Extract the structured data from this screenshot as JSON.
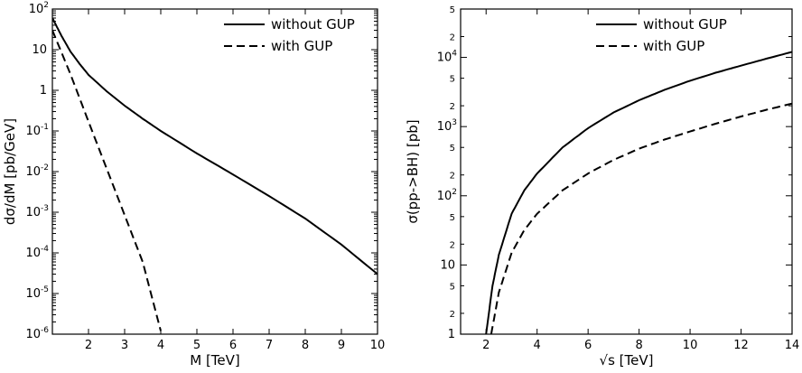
{
  "chart_data": [
    {
      "type": "line",
      "xlabel": "M [TeV]",
      "ylabel": "dσ/dM [pb/GeV]",
      "xlim": [
        1,
        10
      ],
      "ylim": [
        1e-06,
        100
      ],
      "xscale": "linear",
      "yscale": "log",
      "x_ticks": [
        "2",
        "3",
        "4",
        "5",
        "6",
        "7",
        "8",
        "9",
        "10"
      ],
      "y_ticks": [
        {
          "base": "10",
          "exp": "-6"
        },
        {
          "base": "10",
          "exp": "-5"
        },
        {
          "base": "10",
          "exp": "-4"
        },
        {
          "base": "10",
          "exp": "-3"
        },
        {
          "base": "10",
          "exp": "-2"
        },
        {
          "base": "10",
          "exp": "-1"
        },
        {
          "base": "1",
          "exp": ""
        },
        {
          "base": "10",
          "exp": ""
        },
        {
          "base": "10",
          "exp": "2"
        }
      ],
      "legend_position": "top-right",
      "grid": false,
      "series": [
        {
          "name": "without GUP",
          "dash": "solid",
          "x": [
            1.0,
            1.25,
            1.5,
            1.75,
            2.0,
            2.5,
            3.0,
            3.5,
            4.0,
            5.0,
            6.0,
            7.0,
            8.0,
            9.0,
            10.0
          ],
          "y": [
            60,
            22,
            9,
            4.5,
            2.4,
            0.95,
            0.42,
            0.2,
            0.1,
            0.028,
            0.0085,
            0.0025,
            0.0007,
            0.00016,
            3e-05
          ]
        },
        {
          "name": "with GUP",
          "dash": "dashed",
          "x": [
            1.0,
            1.5,
            2.0,
            2.5,
            3.0,
            3.5,
            4.0
          ],
          "y": [
            30,
            2.5,
            0.17,
            0.012,
            0.00085,
            6e-05,
            1.2e-06
          ]
        }
      ]
    },
    {
      "type": "line",
      "xlabel": "√s [TeV]",
      "ylabel": "σ(pp->BH) [pb]",
      "xlim": [
        1,
        14
      ],
      "ylim": [
        1,
        50000
      ],
      "xscale": "linear",
      "yscale": "log",
      "x_ticks": [
        "2",
        "4",
        "6",
        "8",
        "10",
        "12",
        "14"
      ],
      "y_ticks": [
        {
          "value": 1,
          "base": "1",
          "exp": ""
        },
        {
          "value": 2,
          "base": "2",
          "exp": ""
        },
        {
          "value": 5,
          "base": "5",
          "exp": ""
        },
        {
          "value": 10,
          "base": "10",
          "exp": ""
        },
        {
          "value": 20,
          "base": "2",
          "exp": ""
        },
        {
          "value": 50,
          "base": "5",
          "exp": ""
        },
        {
          "value": 100,
          "base": "10",
          "exp": "2"
        },
        {
          "value": 200,
          "base": "2",
          "exp": ""
        },
        {
          "value": 500,
          "base": "5",
          "exp": ""
        },
        {
          "value": 1000,
          "base": "10",
          "exp": "3"
        },
        {
          "value": 2000,
          "base": "2",
          "exp": ""
        },
        {
          "value": 5000,
          "base": "5",
          "exp": ""
        },
        {
          "value": 10000,
          "base": "10",
          "exp": "4"
        },
        {
          "value": 20000,
          "base": "2",
          "exp": ""
        },
        {
          "value": 50000,
          "base": "5",
          "exp": ""
        }
      ],
      "legend_position": "top-right",
      "grid": false,
      "series": [
        {
          "name": "without GUP",
          "dash": "solid",
          "x": [
            2.0,
            2.25,
            2.5,
            3.0,
            3.5,
            4.0,
            5.0,
            6.0,
            7.0,
            8.0,
            9.0,
            10.0,
            11.0,
            12.0,
            13.0,
            14.0
          ],
          "y": [
            1.0,
            5,
            14,
            55,
            120,
            210,
            500,
            950,
            1600,
            2400,
            3400,
            4600,
            6000,
            7600,
            9600,
            12000
          ]
        },
        {
          "name": "with GUP",
          "dash": "dashed",
          "x": [
            2.2,
            2.5,
            3.0,
            3.5,
            4.0,
            5.0,
            6.0,
            7.0,
            8.0,
            9.0,
            10.0,
            11.0,
            12.0,
            13.0,
            14.0
          ],
          "y": [
            1.0,
            4,
            15,
            32,
            55,
            120,
            210,
            330,
            480,
            650,
            850,
            1100,
            1400,
            1750,
            2150
          ]
        }
      ]
    }
  ]
}
